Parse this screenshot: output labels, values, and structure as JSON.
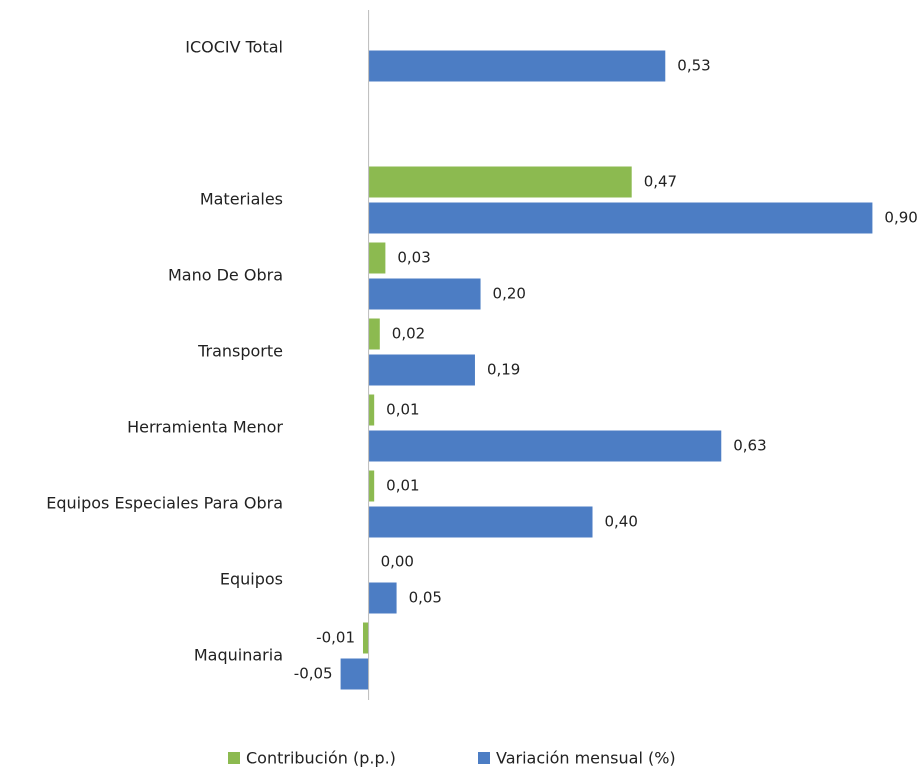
{
  "chart_data": {
    "type": "hbar",
    "categories": [
      "ICOCIV Total",
      null,
      "Materiales",
      "Mano De Obra",
      "Transporte",
      "Herramienta Menor",
      "Equipos Especiales Para Obra",
      "Equipos",
      "Maquinaria"
    ],
    "series": [
      {
        "name": "Contribución (p.p.)",
        "color": "#8cba50",
        "values": [
          null,
          null,
          0.47,
          0.03,
          0.02,
          0.01,
          0.01,
          0.0,
          -0.01
        ],
        "value_labels": [
          null,
          null,
          "0,47",
          "0,03",
          "0,02",
          "0,01",
          "0,01",
          "0,00",
          "-0,01"
        ]
      },
      {
        "name": "Variación mensual (%)",
        "color": "#4c7dc4",
        "values": [
          0.53,
          null,
          0.9,
          0.2,
          0.19,
          0.63,
          0.4,
          0.05,
          -0.05
        ],
        "value_labels": [
          "0,53",
          null,
          "0,90",
          "0,20",
          "0,19",
          "0,63",
          "0,40",
          "0,05",
          "-0,05"
        ]
      }
    ],
    "xlim": [
      -0.06,
      0.96
    ],
    "legend": "bottom"
  }
}
